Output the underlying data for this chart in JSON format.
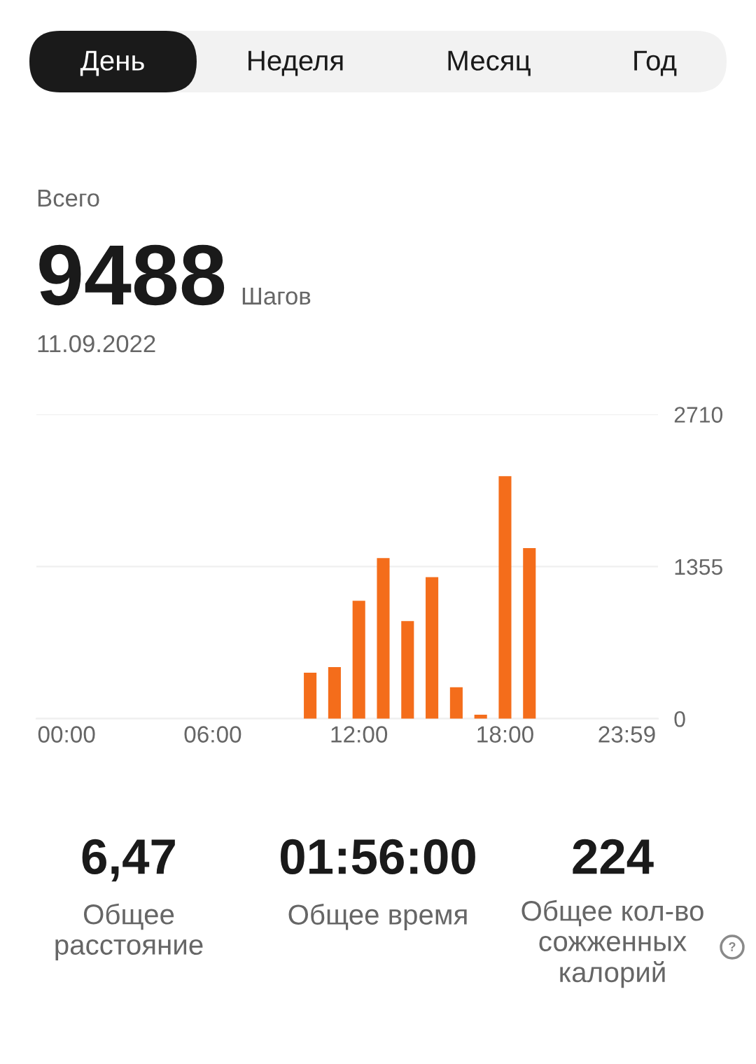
{
  "chart_data": {
    "type": "bar",
    "title": "9488",
    "subtitle": "11.09.2022",
    "categories": [
      "00:00",
      null,
      null,
      null,
      null,
      null,
      "06:00",
      null,
      null,
      null,
      null,
      null,
      "12:00",
      null,
      null,
      null,
      null,
      null,
      "18:00",
      null,
      null,
      null,
      null,
      "23:59"
    ],
    "values": [
      null,
      null,
      null,
      null,
      null,
      null,
      null,
      null,
      null,
      null,
      410,
      460,
      1050,
      1430,
      870,
      1260,
      280,
      35,
      2160,
      1520,
      null,
      null,
      null,
      null
    ],
    "color": "#f46d1b",
    "ylim": [
      0,
      2710
    ],
    "yticks": [
      0,
      1355,
      2710
    ],
    "grid": "y",
    "annotations": [
      "День",
      "Неделя",
      "Месяц",
      "Год",
      "Всего",
      "Шагов",
      "6,47",
      "Общее\nрасстояние",
      "01:56:00",
      "Общее время",
      "224",
      "Общее кол-во\nсожженных\nкалорий",
      "?"
    ]
  }
}
